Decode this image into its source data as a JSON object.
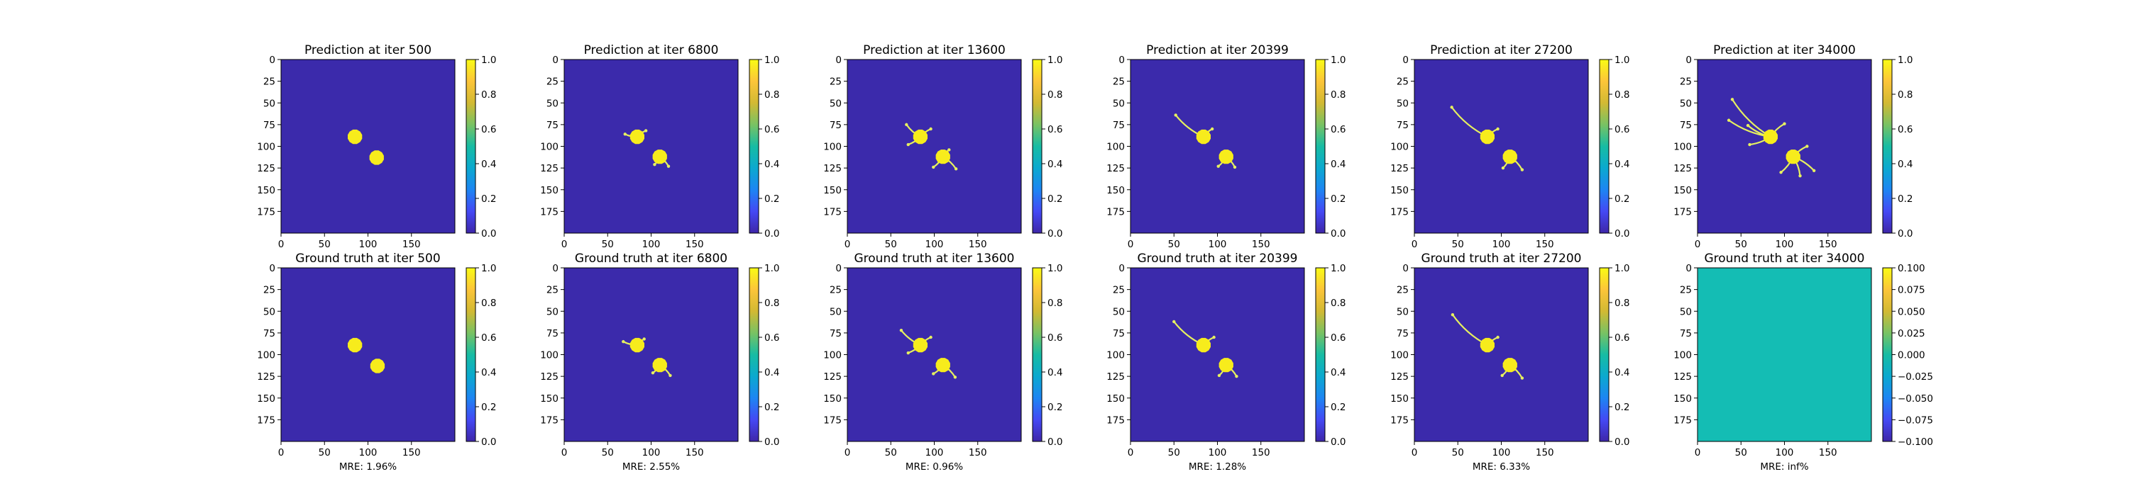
{
  "figure": {
    "colors": {
      "background": "#3b2aab",
      "blob": "#f7ec1c",
      "branch": "#e6f060",
      "uniform_field": "#14bdb4",
      "colormap": [
        "#3e26a8",
        "#4449f4",
        "#1d85f3",
        "#0ba9cf",
        "#17bca3",
        "#79c263",
        "#d2b933",
        "#fcc539",
        "#f9fb15"
      ]
    }
  },
  "chart_data": [
    {
      "type": "heatmap",
      "title": "Prediction at iter 500",
      "x_ticks": [
        "0",
        "50",
        "100",
        "150"
      ],
      "y_ticks": [
        "0",
        "25",
        "50",
        "75",
        "100",
        "125",
        "150",
        "175"
      ],
      "xlim": [
        0,
        200
      ],
      "ylim": [
        200,
        0
      ],
      "colorbar": {
        "range": [
          0.0,
          1.0
        ],
        "ticks": [
          "0.0",
          "0.2",
          "0.4",
          "0.6",
          "0.8",
          "1.0"
        ]
      },
      "blobs": [
        [
          85,
          89
        ],
        [
          110,
          113
        ]
      ],
      "branches": [],
      "field": "blobs",
      "xlabel": ""
    },
    {
      "type": "heatmap",
      "title": "Prediction at iter 6800",
      "x_ticks": [
        "0",
        "50",
        "100",
        "150"
      ],
      "y_ticks": [
        "0",
        "25",
        "50",
        "75",
        "100",
        "125",
        "150",
        "175"
      ],
      "xlim": [
        0,
        200
      ],
      "ylim": [
        200,
        0
      ],
      "colorbar": {
        "range": [
          0.0,
          1.0
        ],
        "ticks": [
          "0.0",
          "0.2",
          "0.4",
          "0.6",
          "0.8",
          "1.0"
        ]
      },
      "blobs": [
        [
          84,
          89
        ],
        [
          110,
          112
        ]
      ],
      "branches": [
        [
          [
            84,
            89
          ],
          [
            70,
            86
          ]
        ],
        [
          [
            84,
            89
          ],
          [
            94,
            82
          ]
        ],
        [
          [
            110,
            112
          ],
          [
            120,
            123
          ]
        ],
        [
          [
            110,
            112
          ],
          [
            104,
            121
          ]
        ]
      ],
      "field": "blobs",
      "xlabel": ""
    },
    {
      "type": "heatmap",
      "title": "Prediction at iter 13600",
      "x_ticks": [
        "0",
        "50",
        "100",
        "150"
      ],
      "y_ticks": [
        "0",
        "25",
        "50",
        "75",
        "100",
        "125",
        "150",
        "175"
      ],
      "xlim": [
        0,
        200
      ],
      "ylim": [
        200,
        0
      ],
      "colorbar": {
        "range": [
          0.0,
          1.0
        ],
        "ticks": [
          "0.0",
          "0.2",
          "0.4",
          "0.6",
          "0.8",
          "1.0"
        ]
      },
      "blobs": [
        [
          84,
          89
        ],
        [
          110,
          112
        ]
      ],
      "branches": [
        [
          [
            84,
            89
          ],
          [
            68,
            75
          ]
        ],
        [
          [
            84,
            89
          ],
          [
            70,
            98
          ]
        ],
        [
          [
            84,
            89
          ],
          [
            96,
            80
          ]
        ],
        [
          [
            110,
            112
          ],
          [
            125,
            126
          ]
        ],
        [
          [
            110,
            112
          ],
          [
            99,
            124
          ]
        ],
        [
          [
            110,
            112
          ],
          [
            117,
            104
          ]
        ]
      ],
      "field": "blobs",
      "xlabel": ""
    },
    {
      "type": "heatmap",
      "title": "Prediction at iter 20399",
      "x_ticks": [
        "0",
        "50",
        "100",
        "150"
      ],
      "y_ticks": [
        "0",
        "25",
        "50",
        "75",
        "100",
        "125",
        "150",
        "175"
      ],
      "xlim": [
        0,
        200
      ],
      "ylim": [
        200,
        0
      ],
      "colorbar": {
        "range": [
          0.0,
          1.0
        ],
        "ticks": [
          "0.0",
          "0.2",
          "0.4",
          "0.6",
          "0.8",
          "1.0"
        ]
      },
      "blobs": [
        [
          84,
          89
        ],
        [
          110,
          112
        ]
      ],
      "branches": [
        [
          [
            84,
            89
          ],
          [
            52,
            64
          ]
        ],
        [
          [
            84,
            89
          ],
          [
            94,
            80
          ]
        ],
        [
          [
            110,
            112
          ],
          [
            120,
            124
          ]
        ],
        [
          [
            110,
            112
          ],
          [
            101,
            123
          ]
        ]
      ],
      "field": "blobs",
      "xlabel": ""
    },
    {
      "type": "heatmap",
      "title": "Prediction at iter 27200",
      "x_ticks": [
        "0",
        "50",
        "100",
        "150"
      ],
      "y_ticks": [
        "0",
        "25",
        "50",
        "75",
        "100",
        "125",
        "150",
        "175"
      ],
      "xlim": [
        0,
        200
      ],
      "ylim": [
        200,
        0
      ],
      "colorbar": {
        "range": [
          0.0,
          1.0
        ],
        "ticks": [
          "0.0",
          "0.2",
          "0.4",
          "0.6",
          "0.8",
          "1.0"
        ]
      },
      "blobs": [
        [
          84,
          89
        ],
        [
          110,
          112
        ]
      ],
      "branches": [
        [
          [
            84,
            89
          ],
          [
            43,
            55
          ]
        ],
        [
          [
            84,
            89
          ],
          [
            96,
            80
          ]
        ],
        [
          [
            110,
            112
          ],
          [
            124,
            127
          ]
        ],
        [
          [
            110,
            112
          ],
          [
            102,
            125
          ]
        ]
      ],
      "field": "blobs",
      "xlabel": ""
    },
    {
      "type": "heatmap",
      "title": "Prediction at iter 34000",
      "x_ticks": [
        "0",
        "50",
        "100",
        "150"
      ],
      "y_ticks": [
        "0",
        "25",
        "50",
        "75",
        "100",
        "125",
        "150",
        "175"
      ],
      "xlim": [
        0,
        200
      ],
      "ylim": [
        200,
        0
      ],
      "colorbar": {
        "range": [
          0.0,
          1.0
        ],
        "ticks": [
          "0.0",
          "0.2",
          "0.4",
          "0.6",
          "0.8",
          "1.0"
        ]
      },
      "blobs": [
        [
          84,
          89
        ],
        [
          110,
          112
        ]
      ],
      "branches": [
        [
          [
            84,
            89
          ],
          [
            40,
            46
          ]
        ],
        [
          [
            84,
            89
          ],
          [
            36,
            70
          ]
        ],
        [
          [
            84,
            89
          ],
          [
            58,
            76
          ]
        ],
        [
          [
            84,
            89
          ],
          [
            60,
            98
          ]
        ],
        [
          [
            84,
            89
          ],
          [
            100,
            74
          ]
        ],
        [
          [
            110,
            112
          ],
          [
            134,
            128
          ]
        ],
        [
          [
            110,
            112
          ],
          [
            118,
            134
          ]
        ],
        [
          [
            110,
            112
          ],
          [
            96,
            130
          ]
        ],
        [
          [
            110,
            112
          ],
          [
            126,
            100
          ]
        ]
      ],
      "field": "blobs",
      "xlabel": ""
    },
    {
      "type": "heatmap",
      "title": "Ground truth at iter 500",
      "x_ticks": [
        "0",
        "50",
        "100",
        "150"
      ],
      "y_ticks": [
        "0",
        "25",
        "50",
        "75",
        "100",
        "125",
        "150",
        "175"
      ],
      "xlim": [
        0,
        200
      ],
      "ylim": [
        200,
        0
      ],
      "colorbar": {
        "range": [
          0.0,
          1.0
        ],
        "ticks": [
          "0.0",
          "0.2",
          "0.4",
          "0.6",
          "0.8",
          "1.0"
        ]
      },
      "blobs": [
        [
          85,
          89
        ],
        [
          111,
          113
        ]
      ],
      "branches": [],
      "field": "blobs",
      "xlabel": "MRE: 1.96%"
    },
    {
      "type": "heatmap",
      "title": "Ground truth at iter 6800",
      "x_ticks": [
        "0",
        "50",
        "100",
        "150"
      ],
      "y_ticks": [
        "0",
        "25",
        "50",
        "75",
        "100",
        "125",
        "150",
        "175"
      ],
      "xlim": [
        0,
        200
      ],
      "ylim": [
        200,
        0
      ],
      "colorbar": {
        "range": [
          0.0,
          1.0
        ],
        "ticks": [
          "0.0",
          "0.2",
          "0.4",
          "0.6",
          "0.8",
          "1.0"
        ]
      },
      "blobs": [
        [
          84,
          89
        ],
        [
          110,
          112
        ]
      ],
      "branches": [
        [
          [
            84,
            89
          ],
          [
            68,
            85
          ]
        ],
        [
          [
            84,
            89
          ],
          [
            92,
            82
          ]
        ],
        [
          [
            110,
            112
          ],
          [
            122,
            124
          ]
        ],
        [
          [
            110,
            112
          ],
          [
            102,
            121
          ]
        ]
      ],
      "field": "blobs",
      "xlabel": "MRE: 2.55%"
    },
    {
      "type": "heatmap",
      "title": "Ground truth at iter 13600",
      "x_ticks": [
        "0",
        "50",
        "100",
        "150"
      ],
      "y_ticks": [
        "0",
        "25",
        "50",
        "75",
        "100",
        "125",
        "150",
        "175"
      ],
      "xlim": [
        0,
        200
      ],
      "ylim": [
        200,
        0
      ],
      "colorbar": {
        "range": [
          0.0,
          1.0
        ],
        "ticks": [
          "0.0",
          "0.2",
          "0.4",
          "0.6",
          "0.8",
          "1.0"
        ]
      },
      "blobs": [
        [
          84,
          89
        ],
        [
          110,
          112
        ]
      ],
      "branches": [
        [
          [
            84,
            89
          ],
          [
            62,
            72
          ]
        ],
        [
          [
            84,
            89
          ],
          [
            70,
            98
          ]
        ],
        [
          [
            84,
            89
          ],
          [
            96,
            80
          ]
        ],
        [
          [
            110,
            112
          ],
          [
            124,
            126
          ]
        ],
        [
          [
            110,
            112
          ],
          [
            99,
            122
          ]
        ]
      ],
      "field": "blobs",
      "xlabel": "MRE: 0.96%"
    },
    {
      "type": "heatmap",
      "title": "Ground truth at iter 20399",
      "x_ticks": [
        "0",
        "50",
        "100",
        "150"
      ],
      "y_ticks": [
        "0",
        "25",
        "50",
        "75",
        "100",
        "125",
        "150",
        "175"
      ],
      "xlim": [
        0,
        200
      ],
      "ylim": [
        200,
        0
      ],
      "colorbar": {
        "range": [
          0.0,
          1.0
        ],
        "ticks": [
          "0.0",
          "0.2",
          "0.4",
          "0.6",
          "0.8",
          "1.0"
        ]
      },
      "blobs": [
        [
          84,
          89
        ],
        [
          110,
          112
        ]
      ],
      "branches": [
        [
          [
            84,
            89
          ],
          [
            50,
            62
          ]
        ],
        [
          [
            84,
            89
          ],
          [
            96,
            80
          ]
        ],
        [
          [
            110,
            112
          ],
          [
            122,
            125
          ]
        ],
        [
          [
            110,
            112
          ],
          [
            102,
            124
          ]
        ]
      ],
      "field": "blobs",
      "xlabel": "MRE: 1.28%"
    },
    {
      "type": "heatmap",
      "title": "Ground truth at iter 27200",
      "x_ticks": [
        "0",
        "50",
        "100",
        "150"
      ],
      "y_ticks": [
        "0",
        "25",
        "50",
        "75",
        "100",
        "125",
        "150",
        "175"
      ],
      "xlim": [
        0,
        200
      ],
      "ylim": [
        200,
        0
      ],
      "colorbar": {
        "range": [
          0.0,
          1.0
        ],
        "ticks": [
          "0.0",
          "0.2",
          "0.4",
          "0.6",
          "0.8",
          "1.0"
        ]
      },
      "blobs": [
        [
          84,
          89
        ],
        [
          110,
          112
        ]
      ],
      "branches": [
        [
          [
            84,
            89
          ],
          [
            44,
            54
          ]
        ],
        [
          [
            84,
            89
          ],
          [
            96,
            80
          ]
        ],
        [
          [
            110,
            112
          ],
          [
            124,
            127
          ]
        ],
        [
          [
            110,
            112
          ],
          [
            101,
            124
          ]
        ]
      ],
      "field": "blobs",
      "xlabel": "MRE: 6.33%"
    },
    {
      "type": "heatmap",
      "title": "Ground truth at iter 34000",
      "x_ticks": [
        "0",
        "50",
        "100",
        "150"
      ],
      "y_ticks": [
        "0",
        "25",
        "50",
        "75",
        "100",
        "125",
        "150",
        "175"
      ],
      "xlim": [
        0,
        200
      ],
      "ylim": [
        200,
        0
      ],
      "colorbar": {
        "range": [
          -0.1,
          0.1
        ],
        "ticks": [
          "−0.100",
          "−0.075",
          "−0.050",
          "−0.025",
          "0.000",
          "0.025",
          "0.050",
          "0.075",
          "0.100"
        ]
      },
      "blobs": [],
      "branches": [],
      "field": "uniform",
      "xlabel": "MRE: inf%"
    }
  ]
}
